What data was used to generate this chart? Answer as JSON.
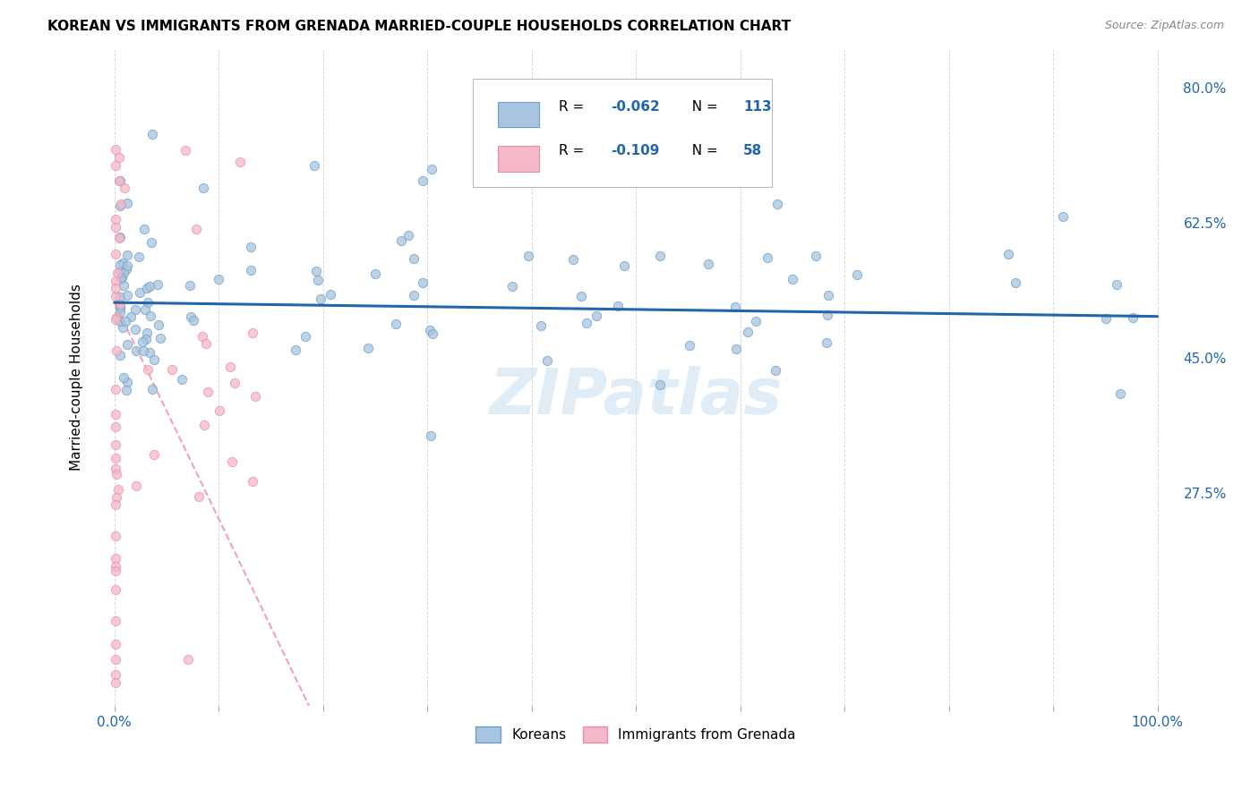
{
  "title": "KOREAN VS IMMIGRANTS FROM GRENADA MARRIED-COUPLE HOUSEHOLDS CORRELATION CHART",
  "source": "Source: ZipAtlas.com",
  "ylabel": "Married-couple Households",
  "xlim": [
    -0.02,
    1.02
  ],
  "ylim": [
    0.0,
    0.85
  ],
  "ytick_positions": [
    0.275,
    0.45,
    0.625,
    0.8
  ],
  "ytick_labels": [
    "27.5%",
    "45.0%",
    "62.5%",
    "80.0%"
  ],
  "xtick_positions": [
    0.0,
    0.1,
    0.2,
    0.3,
    0.4,
    0.5,
    0.6,
    0.7,
    0.8,
    0.9,
    1.0
  ],
  "xtick_labels": [
    "0.0%",
    "",
    "",
    "",
    "",
    "",
    "",
    "",
    "",
    "",
    "100.0%"
  ],
  "korean_fill": "#a8c4e0",
  "korean_edge": "#6b9fc4",
  "grenada_fill": "#f4b8c8",
  "grenada_edge": "#e88fa8",
  "trendline_korean_color": "#2166ac",
  "trendline_grenada_color": "#f4a0b8",
  "legend_color": "#2166ac",
  "legend_R_korean": "-0.062",
  "legend_N_korean": "113",
  "legend_R_grenada": "-0.109",
  "legend_N_grenada": "58",
  "watermark_text": "ZIPatlas",
  "watermark_color": "#c8dff0",
  "background_color": "#ffffff",
  "grid_color": "#d0d0d0",
  "title_fontsize": 11,
  "tick_color": "#2166ac",
  "scatter_size": 55,
  "scatter_alpha": 0.75,
  "korean_trend_intercept": 0.522,
  "korean_trend_slope": -0.018,
  "grenada_trend_intercept": 0.522,
  "grenada_trend_slope": -2.8
}
